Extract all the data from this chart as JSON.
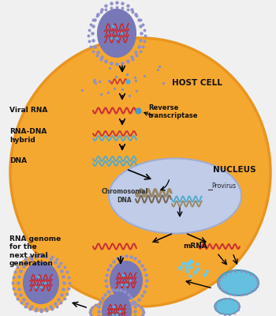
{
  "bg_color": "#f0f0f0",
  "cell_color": "#f5a830",
  "cell_edge_color": "#e89520",
  "nucleus_color": "#c0cce8",
  "nucleus_edge_color": "#a0acd0",
  "virus_body_color": "#7878b8",
  "virus_spike_color": "#9090cc",
  "rna_red": "#cc3333",
  "rna_blue": "#55aacc",
  "rna_tan": "#998866",
  "rna_orange": "#cc8833",
  "cyan_er": "#44aacc",
  "dots_purple": "#9090bb",
  "text_dark": "#111111",
  "labels": {
    "host_cell": "HOST CELL",
    "reverse_transcriptase": "Reverse\ntranscriptase",
    "viral_rna": "Viral RNA",
    "rna_dna_hybrid": "RNA-DNA\nhybrid",
    "dna": "DNA",
    "nucleus": "NUCLEUS",
    "provirus": "Provirus",
    "chromosomal_dna": "Chromosomal\nDNA",
    "mrna": "mRNA",
    "rna_genome": "RNA genome\nfor the\nnext viral\ngeneration"
  }
}
